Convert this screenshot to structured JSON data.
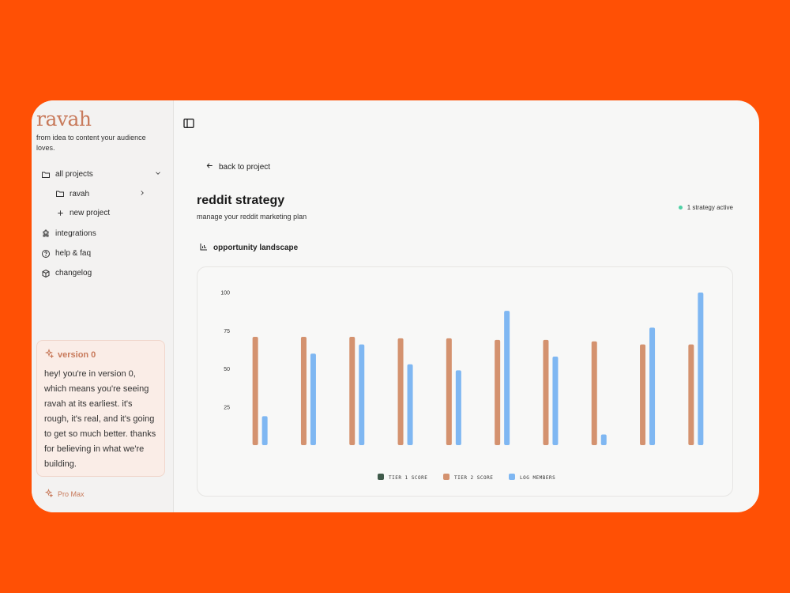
{
  "app": {
    "logo": "ravah",
    "tagline": "from idea to content your audience loves."
  },
  "sidebar": {
    "items": [
      {
        "label": "all projects",
        "icon": "folder-icon"
      },
      {
        "label": "ravah",
        "icon": "folder-icon"
      },
      {
        "label": "new project",
        "icon": "plus-icon"
      },
      {
        "label": "integrations",
        "icon": "puzzle-icon"
      },
      {
        "label": "help & faq",
        "icon": "help-circle-icon"
      },
      {
        "label": "changelog",
        "icon": "package-icon"
      }
    ]
  },
  "version_card": {
    "title": "version 0",
    "text": "hey! you're in version 0, which means you're seeing ravah at its earliest. it's rough, it's real, and it's going to get so much better. thanks for believing in what we're building."
  },
  "plan": {
    "label": "Pro Max"
  },
  "main": {
    "back_label": "back to project",
    "title": "reddit strategy",
    "subtitle": "manage your reddit marketing plan",
    "status": "1 strategy active",
    "section_title": "opportunity landscape"
  },
  "colors": {
    "accent": "#C87A5B",
    "tier1": "#3F5A4A",
    "tier2": "#D4926F",
    "log_members": "#7FB7F2",
    "status_dot": "#4FD1A5",
    "background": "#FF5005"
  },
  "chart_data": {
    "type": "bar",
    "categories": [
      "",
      "",
      "",
      "",
      "",
      "",
      "",
      "",
      "",
      ""
    ],
    "yticks": [
      25,
      50,
      75,
      100
    ],
    "ylim": [
      0,
      100
    ],
    "series": [
      {
        "name": "TIER 1 SCORE",
        "values": [
          0,
          0,
          0,
          0,
          0,
          0,
          0,
          0,
          0,
          0
        ]
      },
      {
        "name": "TIER 2 SCORE",
        "values": [
          71,
          71,
          71,
          70,
          70,
          69,
          69,
          68,
          66,
          66
        ]
      },
      {
        "name": "LOG MEMBERS",
        "values": [
          19,
          60,
          66,
          53,
          49,
          88,
          58,
          7,
          77,
          100
        ]
      }
    ],
    "legend": "bottom"
  }
}
